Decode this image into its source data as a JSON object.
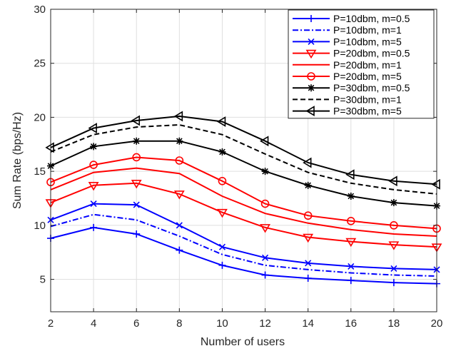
{
  "chart_data": {
    "type": "line",
    "xlabel": "Number of users",
    "ylabel": "Sum Rate (bps/Hz)",
    "x": [
      2,
      4,
      6,
      8,
      10,
      12,
      14,
      16,
      18,
      20
    ],
    "xlim": [
      2,
      20
    ],
    "ylim": [
      2,
      30
    ],
    "xticks": [
      2,
      4,
      6,
      8,
      10,
      12,
      14,
      16,
      18,
      20
    ],
    "yticks": [
      5,
      10,
      15,
      20,
      25,
      30
    ],
    "grid": true,
    "legend_position": "top-right",
    "series": [
      {
        "name": "P=10dbm, m=0.5",
        "color": "#0000ff",
        "dash": "solid",
        "marker": "plus",
        "values": [
          8.8,
          9.8,
          9.2,
          7.7,
          6.3,
          5.4,
          5.1,
          4.9,
          4.7,
          4.6
        ]
      },
      {
        "name": "P=10dbm, m=1",
        "color": "#0000ff",
        "dash": "dashdot",
        "marker": "none",
        "values": [
          9.9,
          11.0,
          10.5,
          9.0,
          7.3,
          6.3,
          5.9,
          5.6,
          5.4,
          5.3
        ]
      },
      {
        "name": "P=10dbm, m=5",
        "color": "#0000ff",
        "dash": "solid",
        "marker": "x",
        "values": [
          10.5,
          12.0,
          11.9,
          10.0,
          8.0,
          7.0,
          6.5,
          6.2,
          6.0,
          5.9
        ]
      },
      {
        "name": "P=20dbm, m=0.5",
        "color": "#ff0000",
        "dash": "solid",
        "marker": "triangle-down",
        "values": [
          12.1,
          13.7,
          13.9,
          12.9,
          11.2,
          9.8,
          8.9,
          8.5,
          8.2,
          8.0
        ]
      },
      {
        "name": "P=20dbm, m=1",
        "color": "#ff0000",
        "dash": "solid",
        "marker": "none",
        "values": [
          13.3,
          14.9,
          15.3,
          14.8,
          12.7,
          11.1,
          10.2,
          9.6,
          9.2,
          9.0
        ]
      },
      {
        "name": "P=20dbm, m=5",
        "color": "#ff0000",
        "dash": "solid",
        "marker": "circle",
        "values": [
          14.0,
          15.6,
          16.3,
          16.0,
          14.1,
          12.0,
          10.9,
          10.4,
          10.0,
          9.7
        ]
      },
      {
        "name": "P=30dbm, m=0.5",
        "color": "#000000",
        "dash": "solid",
        "marker": "asterisk",
        "values": [
          15.5,
          17.3,
          17.8,
          17.8,
          16.8,
          15.0,
          13.7,
          12.7,
          12.1,
          11.8
        ]
      },
      {
        "name": "P=30dbm, m=1",
        "color": "#000000",
        "dash": "dashed",
        "marker": "none",
        "values": [
          16.8,
          18.4,
          19.1,
          19.3,
          18.4,
          16.6,
          14.9,
          13.9,
          13.3,
          12.9
        ]
      },
      {
        "name": "P=30dbm, m=5",
        "color": "#000000",
        "dash": "solid",
        "marker": "triangle-left",
        "values": [
          17.2,
          19.0,
          19.7,
          20.1,
          19.6,
          17.8,
          15.8,
          14.7,
          14.1,
          13.8
        ]
      }
    ]
  }
}
